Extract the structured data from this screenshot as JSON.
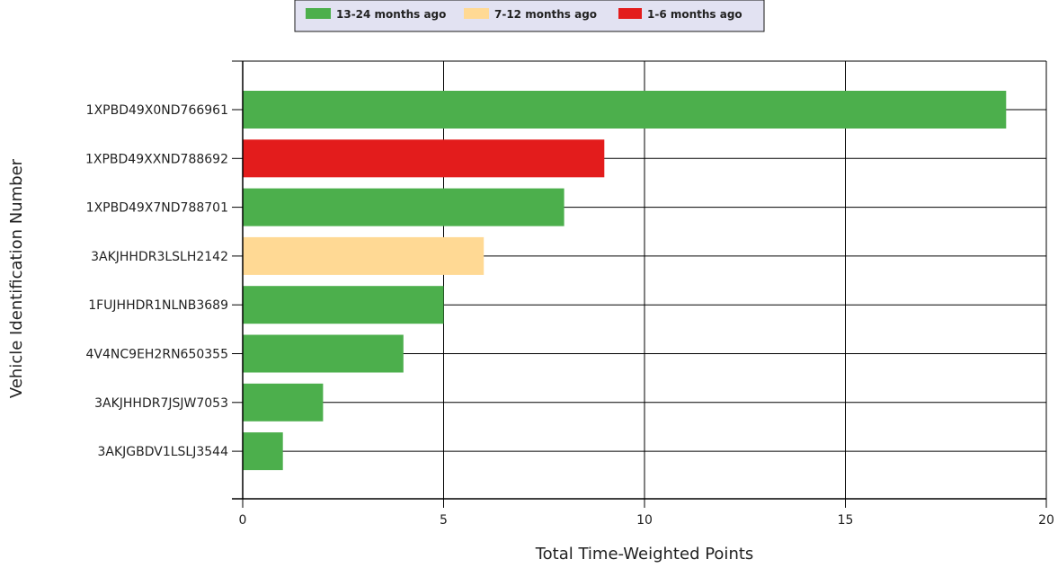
{
  "chart_data": {
    "type": "bar",
    "orientation": "horizontal",
    "xlabel": "Total Time-Weighted Points",
    "ylabel": "Vehicle Identification Number",
    "xlim": [
      0,
      20
    ],
    "xticks": [
      0,
      5,
      10,
      15,
      20
    ],
    "grid": true,
    "legend_position": "top-center",
    "legend": [
      {
        "label": "13-24 months ago",
        "color": "#4caf4c"
      },
      {
        "label": "7-12 months ago",
        "color": "#ffd994"
      },
      {
        "label": "1-6 months ago",
        "color": "#e31c1c"
      }
    ],
    "bars": [
      {
        "category": "1XPBD49X0ND766961",
        "value": 19,
        "group": "13-24 months ago"
      },
      {
        "category": "1XPBD49XXND788692",
        "value": 9,
        "group": "1-6 months ago"
      },
      {
        "category": "1XPBD49X7ND788701",
        "value": 8,
        "group": "13-24 months ago"
      },
      {
        "category": "3AKJHHDR3LSLH2142",
        "value": 6,
        "group": "7-12 months ago"
      },
      {
        "category": "1FUJHHDR1NLNB3689",
        "value": 5,
        "group": "13-24 months ago"
      },
      {
        "category": "4V4NC9EH2RN650355",
        "value": 4,
        "group": "13-24 months ago"
      },
      {
        "category": "3AKJHHDR7JSJW7053",
        "value": 2,
        "group": "13-24 months ago"
      },
      {
        "category": "3AKJGBDV1LSLJ3544",
        "value": 1,
        "group": "13-24 months ago"
      }
    ]
  }
}
